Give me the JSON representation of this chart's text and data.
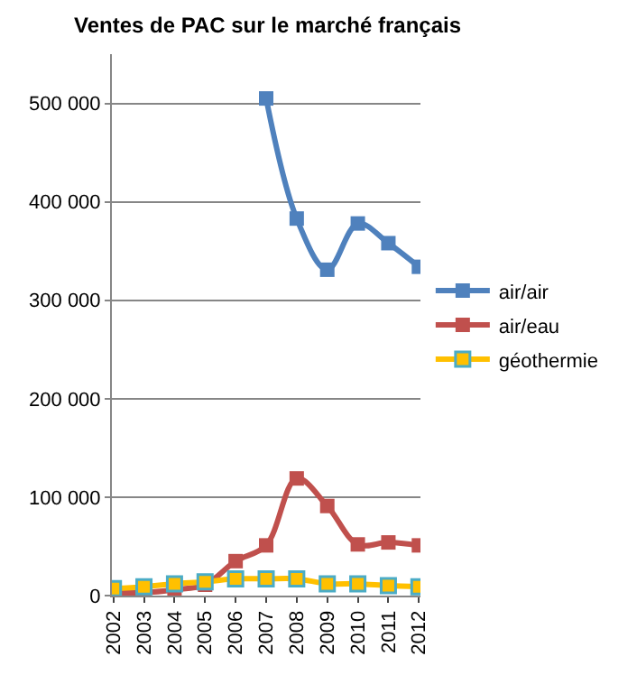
{
  "chart_data": {
    "type": "line",
    "title": "Ventes de PAC sur le marché français",
    "categories": [
      "2002",
      "2003",
      "2004",
      "2005",
      "2006",
      "2007",
      "2008",
      "2009",
      "2010",
      "2011",
      "2012"
    ],
    "series": [
      {
        "name": "air/air",
        "color": "#4f81bd",
        "values": [
          null,
          null,
          null,
          null,
          null,
          505000,
          383000,
          331000,
          378000,
          358000,
          334000
        ]
      },
      {
        "name": "air/eau",
        "color": "#c0504d",
        "values": [
          3000,
          3000,
          6000,
          11000,
          35000,
          51000,
          119000,
          91000,
          52000,
          54000,
          51000
        ]
      },
      {
        "name": "géothermie",
        "color": "#ffc000",
        "values": [
          7000,
          9000,
          12000,
          14000,
          17000,
          17000,
          17000,
          12000,
          12000,
          10000,
          9000
        ]
      }
    ],
    "ylim": [
      0,
      550000
    ],
    "yticks": [
      {
        "value": 0,
        "label": "0"
      },
      {
        "value": 100000,
        "label": "100 000"
      },
      {
        "value": 200000,
        "label": "200 000"
      },
      {
        "value": 300000,
        "label": "300 000"
      },
      {
        "value": 400000,
        "label": "400 000"
      },
      {
        "value": 500000,
        "label": "500 000"
      }
    ],
    "grid": "y",
    "legend": "right",
    "marker": "square",
    "line_style": "solid"
  }
}
